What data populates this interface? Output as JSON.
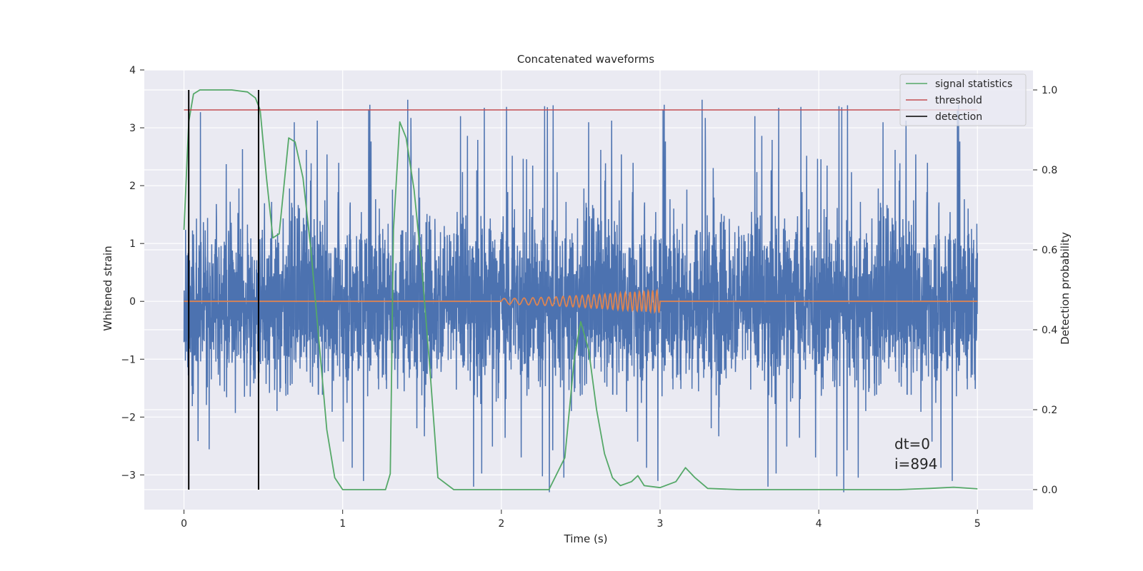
{
  "chart_data": {
    "type": "line",
    "title": "Concatenated waveforms",
    "xlabel": "Time (s)",
    "ylabel_left": "Whitened strain",
    "ylabel_right": "Detection probability",
    "xlim": [
      -0.25,
      5.35
    ],
    "ylim_left": [
      -3.6,
      4.0
    ],
    "ylim_right": [
      -0.05,
      1.05
    ],
    "grid": true,
    "legend_position": "top-right",
    "x_ticks": [
      0,
      1,
      2,
      3,
      4,
      5
    ],
    "x_tick_labels": [
      "0",
      "1",
      "2",
      "3",
      "4",
      "5"
    ],
    "y_left_ticks": [
      -3,
      -2,
      -1,
      0,
      1,
      2,
      3,
      4
    ],
    "y_left_tick_labels": [
      "−3",
      "−2",
      "−1",
      "0",
      "1",
      "2",
      "3",
      "4"
    ],
    "y_right_ticks": [
      0.0,
      0.2,
      0.4,
      0.6,
      0.8,
      1.0
    ],
    "y_right_tick_labels": [
      "0.0",
      "0.2",
      "0.4",
      "0.6",
      "0.8",
      "1.0"
    ],
    "series": [
      {
        "name": "",
        "axis": "left",
        "color": "#4c72b0",
        "kind": "noise",
        "x_range": [
          0,
          5
        ],
        "amplitude_range": [
          -3.3,
          3.65
        ]
      },
      {
        "name": "",
        "axis": "left",
        "color": "#dd8452",
        "kind": "chirp",
        "x_range": [
          0,
          5
        ],
        "chirp_range": [
          2.0,
          3.0
        ],
        "peak_amplitude": 0.2
      },
      {
        "name": "signal statistics",
        "axis": "right",
        "color": "#55a868",
        "x": [
          0,
          0.03,
          0.06,
          0.1,
          0.2,
          0.3,
          0.4,
          0.45,
          0.48,
          0.52,
          0.56,
          0.6,
          0.66,
          0.7,
          0.75,
          0.8,
          0.86,
          0.9,
          0.95,
          1.0,
          1.1,
          1.2,
          1.27,
          1.3,
          1.32,
          1.36,
          1.4,
          1.45,
          1.5,
          1.55,
          1.6,
          1.7,
          2.0,
          2.3,
          2.4,
          2.46,
          2.5,
          2.55,
          2.6,
          2.65,
          2.7,
          2.75,
          2.82,
          2.86,
          2.9,
          3.0,
          3.1,
          3.16,
          3.22,
          3.3,
          3.5,
          4.0,
          4.5,
          4.7,
          4.85,
          5.0
        ],
        "y": [
          0.65,
          0.92,
          0.99,
          1.0,
          1.0,
          1.0,
          0.995,
          0.98,
          0.95,
          0.78,
          0.63,
          0.64,
          0.88,
          0.87,
          0.78,
          0.6,
          0.33,
          0.15,
          0.03,
          0.0,
          0.0,
          0.0,
          0.0,
          0.04,
          0.65,
          0.92,
          0.88,
          0.75,
          0.55,
          0.3,
          0.03,
          0.0,
          0.0,
          0.0,
          0.08,
          0.33,
          0.42,
          0.35,
          0.2,
          0.09,
          0.03,
          0.01,
          0.02,
          0.035,
          0.01,
          0.005,
          0.02,
          0.055,
          0.03,
          0.003,
          0.0,
          0.0,
          0.0,
          0.003,
          0.006,
          0.002
        ]
      },
      {
        "name": "threshold",
        "axis": "right",
        "color": "#c44e52",
        "x": [
          0,
          5
        ],
        "y": [
          0.95,
          0.95
        ]
      },
      {
        "name": "detection",
        "axis": "right",
        "color": "#000000",
        "kind": "vlines",
        "x": [
          0.03,
          0.47
        ],
        "y_range": [
          0.0,
          1.0
        ]
      }
    ],
    "annotations": [
      "dt=0",
      "i=894"
    ],
    "annotation_anchor": [
      4.5,
      0.12
    ]
  }
}
